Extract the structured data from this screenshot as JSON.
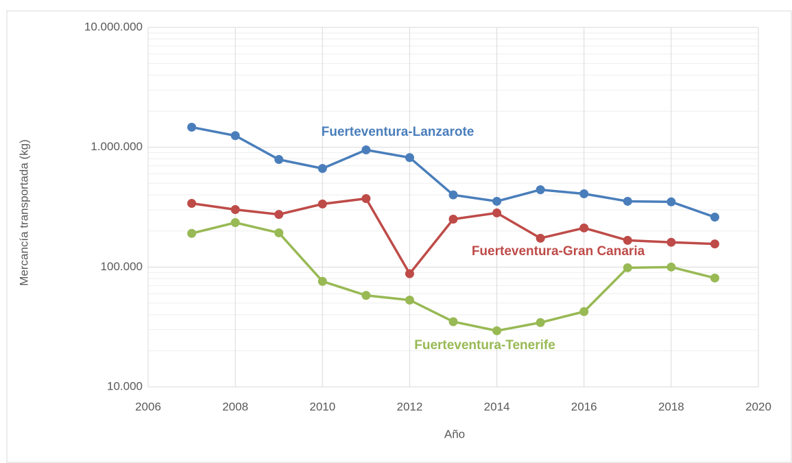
{
  "chart_data": {
    "type": "line",
    "xlabel": "Año",
    "ylabel": "Mercancía transportada (kg)",
    "x": [
      2007,
      2008,
      2009,
      2010,
      2011,
      2012,
      2013,
      2014,
      2015,
      2016,
      2017,
      2018,
      2019
    ],
    "series": [
      {
        "name": "Fuerteventura-Lanzarote",
        "color": "#4a7ebb",
        "values": [
          1470000,
          1250000,
          790000,
          665000,
          950000,
          820000,
          400000,
          354000,
          442000,
          409000,
          354000,
          350000,
          261000
        ]
      },
      {
        "name": "Fuerteventura-Gran Canaria",
        "color": "#be4b48",
        "values": [
          340000,
          302000,
          275000,
          336000,
          373000,
          88000,
          251000,
          283000,
          174000,
          212000,
          167000,
          161000,
          156000
        ]
      },
      {
        "name": "Fuerteventura-Tenerife",
        "color": "#98b954",
        "values": [
          191000,
          235000,
          193000,
          76000,
          58000,
          53000,
          35000,
          29400,
          34400,
          42500,
          98700,
          100000,
          81000
        ]
      }
    ],
    "xlim": [
      2006,
      2020
    ],
    "xticks": [
      2006,
      2008,
      2010,
      2012,
      2014,
      2016,
      2018,
      2020
    ],
    "ylim": [
      10000,
      10000000
    ],
    "yticks": [
      {
        "value": 10000,
        "label": "10.000"
      },
      {
        "value": 100000,
        "label": "100.000"
      },
      {
        "value": 1000000,
        "label": "1.000.000"
      },
      {
        "value": 10000000,
        "label": "10.000.000"
      }
    ],
    "log_y": true,
    "grid": true
  }
}
